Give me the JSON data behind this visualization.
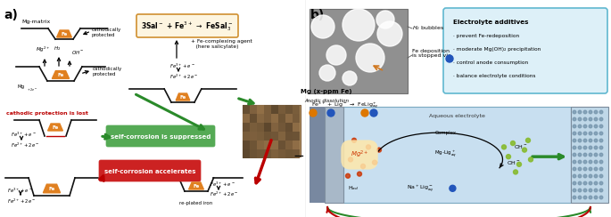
{
  "fig_width": 6.85,
  "fig_height": 2.44,
  "dpi": 100,
  "bg_color": "#ffffff",
  "panel_a": {
    "label": "a)",
    "label_fontsize": 10,
    "label_fontweight": "bold"
  },
  "panel_b": {
    "label": "b)",
    "label_fontsize": 10,
    "label_fontweight": "bold",
    "electrolyte_title": "Electrolyte additives",
    "electrolyte_bullets": [
      "· prevent Fe-redeposition",
      "· moderate Mg(OH)₂ precipitation",
      "· control anode consumption",
      "· balance electrolyte conditions"
    ]
  },
  "colors": {
    "fe_orange": "#e08020",
    "mg_surface": "#111111",
    "green_arrow": "#2a8a2a",
    "red_arrow": "#bb0000",
    "green_box_fill": "#55aa55",
    "red_box_fill": "#cc2222",
    "reaction_box_border": "#d09030",
    "reaction_box_fill": "#fdf5e0",
    "electrolyte_box_fill": "#ddf0f8",
    "electrolyte_box_border": "#60b8d0",
    "aqueous_fill": "#c8dff0",
    "anode_dark": "#7888a0",
    "anode_light": "#a8b8c8",
    "air_fill": "#c0d8e8",
    "air_dots": "#7090a8",
    "orange_arrow": "#d07820",
    "green_dot": "#88bb30",
    "red_dot": "#cc3300",
    "blue_dot": "#2255bb",
    "orange_dot": "#dd7700"
  }
}
